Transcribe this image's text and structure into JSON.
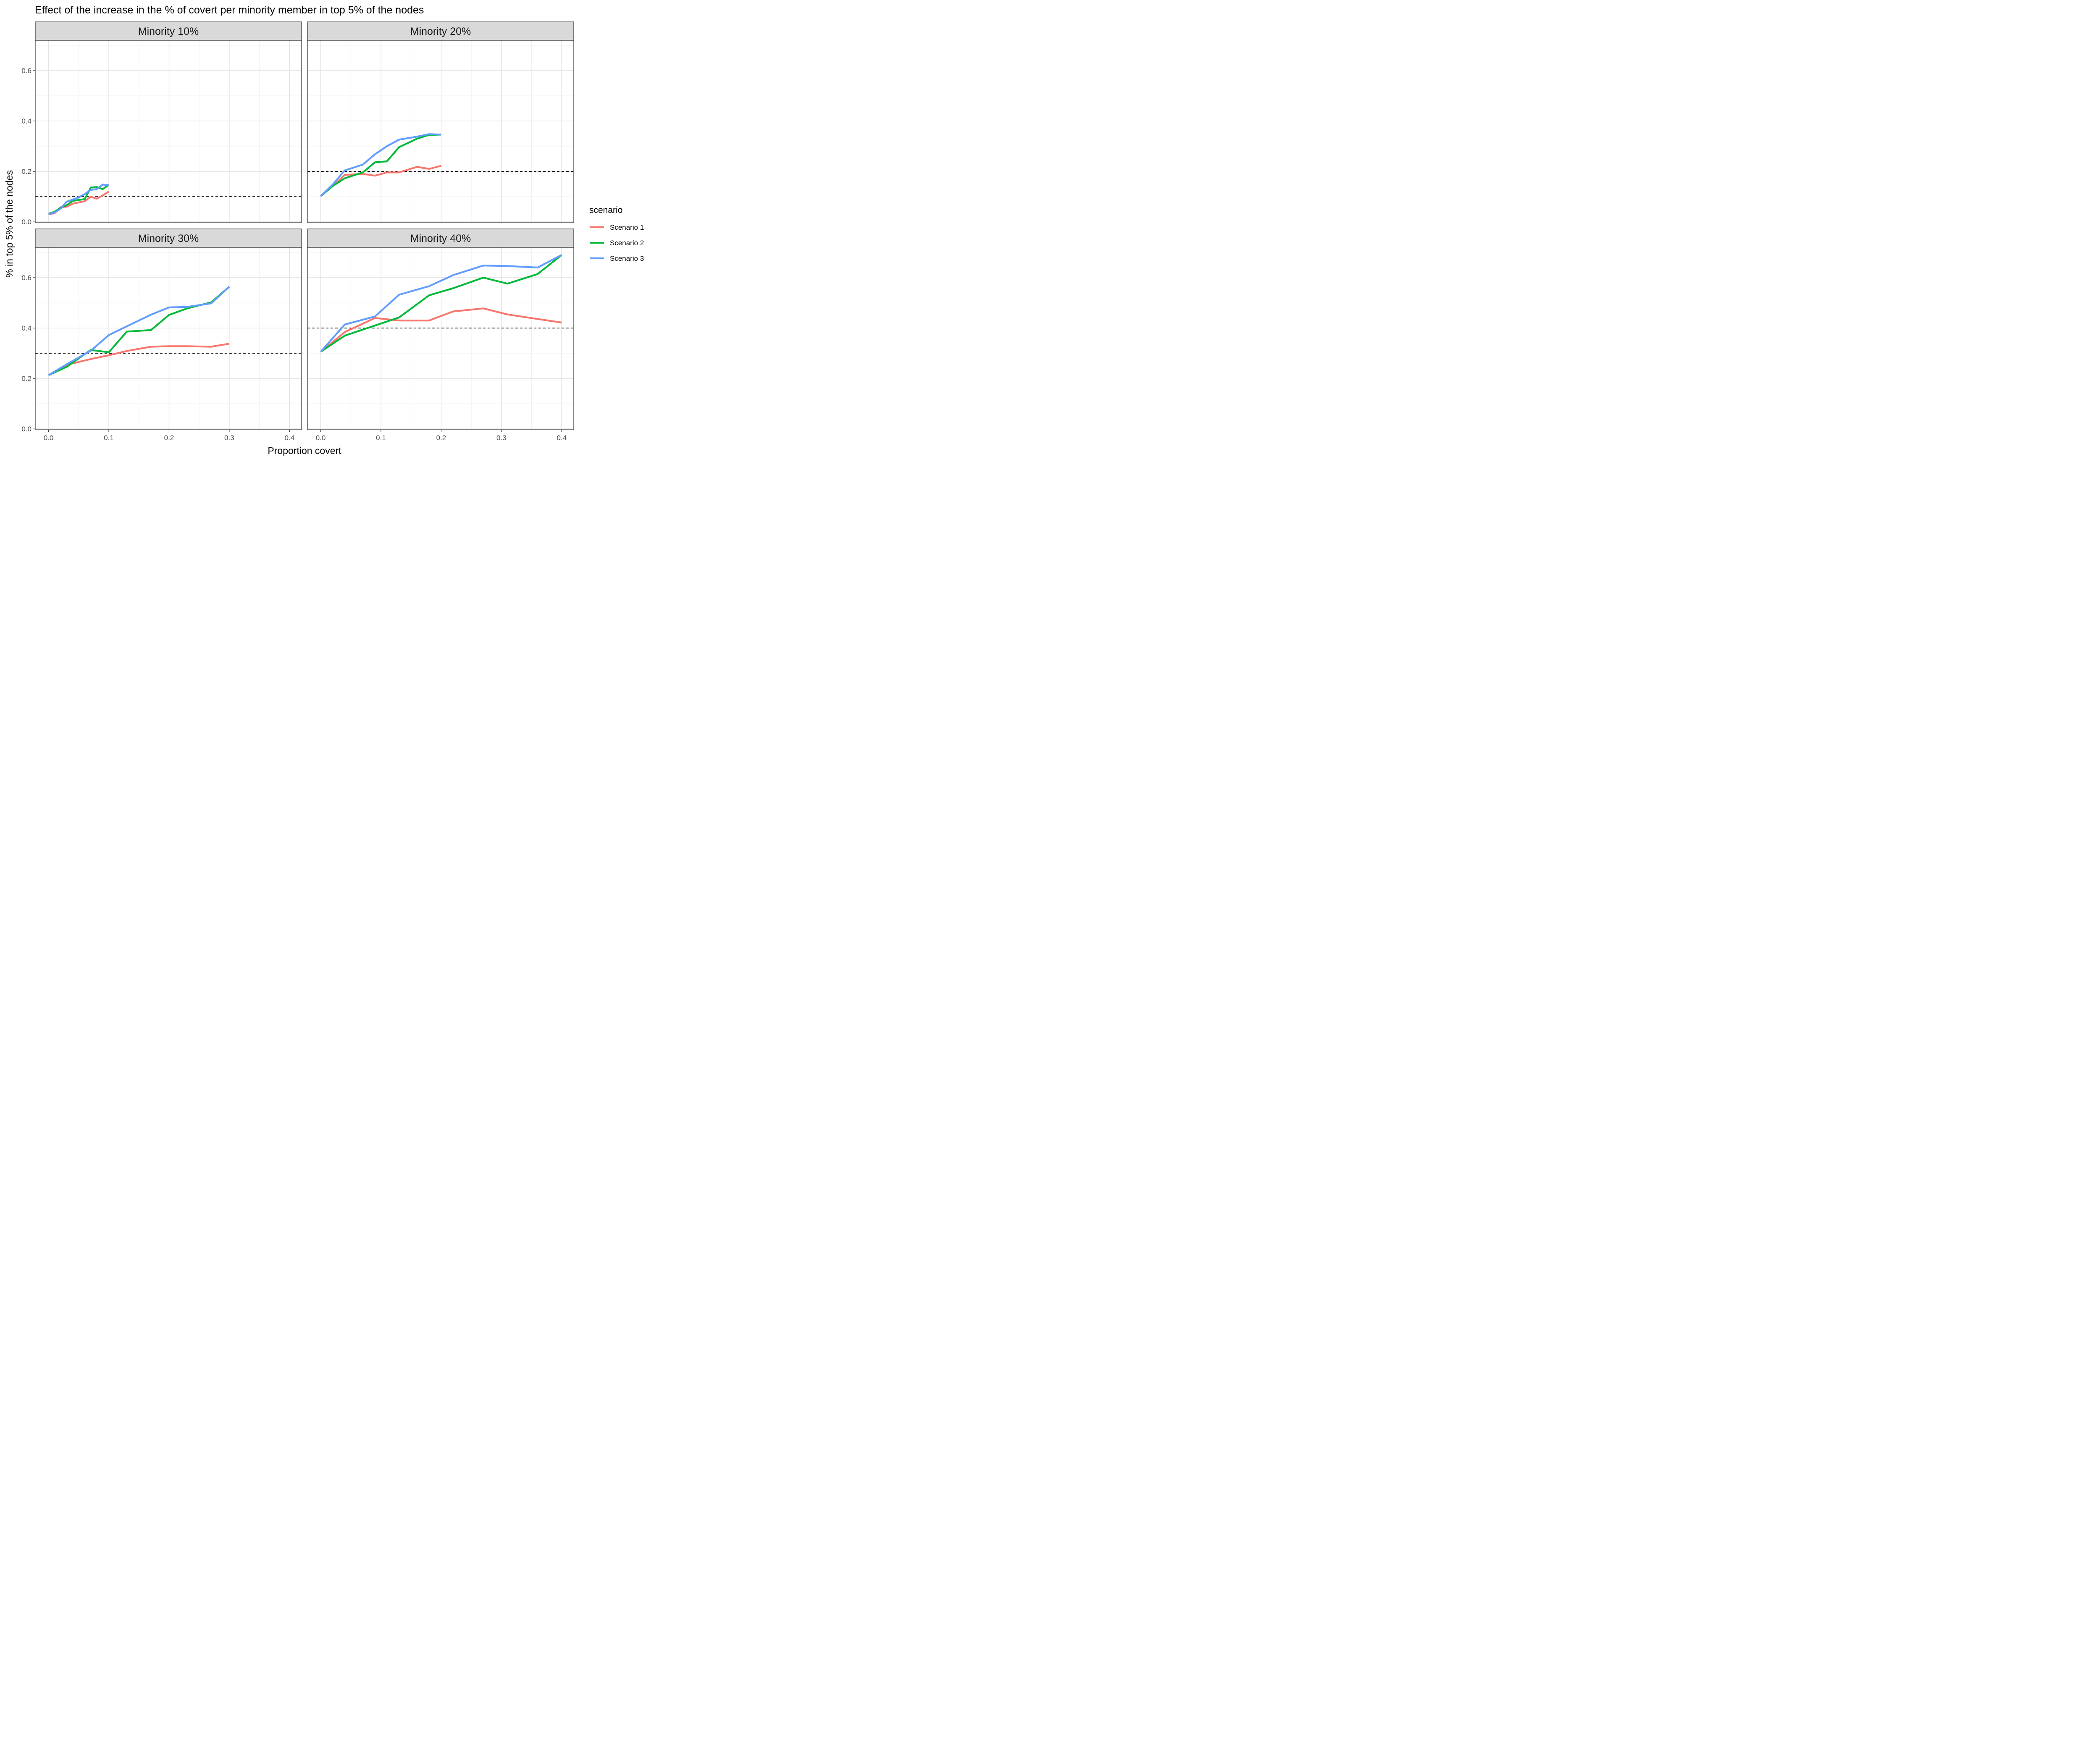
{
  "chart_data": {
    "type": "line",
    "title": "Effect of the increase in the % of covert per minority member in top 5% of the nodes",
    "xlabel": "Proportion covert",
    "ylabel": "% in top 5% of the nodes",
    "xlim": [
      -0.022,
      0.42
    ],
    "ylim": [
      -0.003,
      0.72
    ],
    "x_ticks": [
      0.0,
      0.1,
      0.2,
      0.3,
      0.4
    ],
    "x_tick_labels": [
      "0.0",
      "0.1",
      "0.2",
      "0.3",
      "0.4"
    ],
    "y_ticks": [
      0.0,
      0.2,
      0.4,
      0.6
    ],
    "y_tick_labels": [
      "0.0",
      "0.2",
      "0.4",
      "0.6"
    ],
    "grid": true,
    "legend": {
      "title": "scenario",
      "position": "right",
      "entries": [
        {
          "name": "Scenario 1",
          "color": "#F8766D"
        },
        {
          "name": "Scenario 2",
          "color": "#00BA38"
        },
        {
          "name": "Scenario 3",
          "color": "#619CFF"
        }
      ]
    },
    "panels": [
      {
        "label": "Minority 10%",
        "reference_line": 0.1,
        "series": [
          {
            "name": "Scenario 1",
            "x": [
              0.0,
              0.01,
              0.02,
              0.03,
              0.04,
              0.05,
              0.06,
              0.07,
              0.08,
              0.09,
              0.1
            ],
            "y": [
              0.03,
              0.034,
              0.058,
              0.06,
              0.072,
              0.077,
              0.082,
              0.1,
              0.092,
              0.105,
              0.12
            ]
          },
          {
            "name": "Scenario 2",
            "x": [
              0.0,
              0.01,
              0.02,
              0.03,
              0.04,
              0.05,
              0.06,
              0.07,
              0.08,
              0.09,
              0.1
            ],
            "y": [
              0.032,
              0.04,
              0.056,
              0.066,
              0.083,
              0.087,
              0.09,
              0.136,
              0.138,
              0.13,
              0.147
            ]
          },
          {
            "name": "Scenario 3",
            "x": [
              0.0,
              0.01,
              0.02,
              0.03,
              0.04,
              0.05,
              0.06,
              0.07,
              0.08,
              0.09,
              0.1
            ],
            "y": [
              0.031,
              0.037,
              0.052,
              0.08,
              0.088,
              0.097,
              0.11,
              0.127,
              0.13,
              0.148,
              0.145
            ]
          }
        ]
      },
      {
        "label": "Minority 20%",
        "reference_line": 0.2,
        "series": [
          {
            "name": "Scenario 1",
            "x": [
              0.0,
              0.02,
              0.04,
              0.07,
              0.09,
              0.11,
              0.13,
              0.16,
              0.18,
              0.2
            ],
            "y": [
              0.102,
              0.142,
              0.186,
              0.19,
              0.183,
              0.196,
              0.196,
              0.218,
              0.21,
              0.222
            ]
          },
          {
            "name": "Scenario 2",
            "x": [
              0.0,
              0.02,
              0.04,
              0.07,
              0.09,
              0.11,
              0.13,
              0.16,
              0.18,
              0.2
            ],
            "y": [
              0.102,
              0.142,
              0.173,
              0.196,
              0.236,
              0.24,
              0.296,
              0.33,
              0.345,
              0.346
            ]
          },
          {
            "name": "Scenario 3",
            "x": [
              0.0,
              0.02,
              0.04,
              0.07,
              0.09,
              0.11,
              0.13,
              0.16,
              0.18,
              0.2
            ],
            "y": [
              0.102,
              0.148,
              0.204,
              0.227,
              0.268,
              0.3,
              0.326,
              0.338,
              0.348,
              0.346
            ]
          }
        ]
      },
      {
        "label": "Minority 30%",
        "reference_line": 0.3,
        "series": [
          {
            "name": "Scenario 1",
            "x": [
              0.0,
              0.03,
              0.07,
              0.1,
              0.13,
              0.17,
              0.2,
              0.23,
              0.27,
              0.3
            ],
            "y": [
              0.213,
              0.254,
              0.277,
              0.292,
              0.309,
              0.326,
              0.328,
              0.328,
              0.326,
              0.338
            ]
          },
          {
            "name": "Scenario 2",
            "x": [
              0.0,
              0.03,
              0.07,
              0.1,
              0.13,
              0.17,
              0.2,
              0.23,
              0.27,
              0.3
            ],
            "y": [
              0.213,
              0.246,
              0.313,
              0.304,
              0.386,
              0.392,
              0.452,
              0.478,
              0.502,
              0.564
            ]
          },
          {
            "name": "Scenario 3",
            "x": [
              0.0,
              0.03,
              0.07,
              0.1,
              0.13,
              0.17,
              0.2,
              0.23,
              0.27,
              0.3
            ],
            "y": [
              0.213,
              0.256,
              0.31,
              0.372,
              0.407,
              0.453,
              0.482,
              0.484,
              0.498,
              0.564
            ]
          }
        ]
      },
      {
        "label": "Minority 40%",
        "reference_line": 0.4,
        "series": [
          {
            "name": "Scenario 1",
            "x": [
              0.0,
              0.04,
              0.09,
              0.13,
              0.18,
              0.22,
              0.27,
              0.31,
              0.36,
              0.4
            ],
            "y": [
              0.306,
              0.384,
              0.44,
              0.43,
              0.43,
              0.466,
              0.478,
              0.454,
              0.436,
              0.422
            ]
          },
          {
            "name": "Scenario 2",
            "x": [
              0.0,
              0.04,
              0.09,
              0.13,
              0.18,
              0.22,
              0.27,
              0.31,
              0.36,
              0.4
            ],
            "y": [
              0.306,
              0.37,
              0.41,
              0.442,
              0.53,
              0.558,
              0.6,
              0.576,
              0.614,
              0.69
            ]
          },
          {
            "name": "Scenario 3",
            "x": [
              0.0,
              0.04,
              0.09,
              0.13,
              0.18,
              0.22,
              0.27,
              0.31,
              0.36,
              0.4
            ],
            "y": [
              0.306,
              0.414,
              0.446,
              0.532,
              0.566,
              0.61,
              0.648,
              0.646,
              0.64,
              0.69
            ]
          }
        ]
      }
    ]
  }
}
